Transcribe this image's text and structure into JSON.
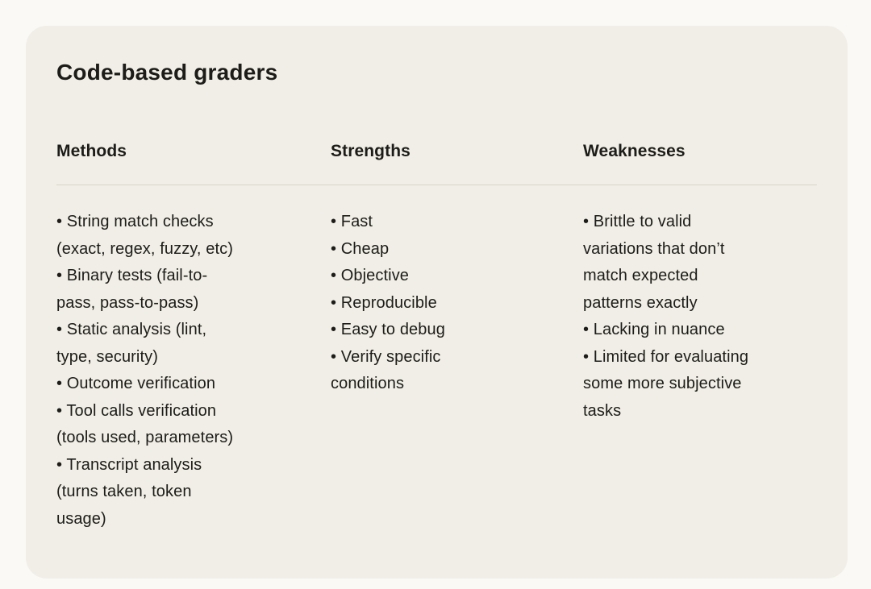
{
  "card": {
    "title": "Code-based graders",
    "columns": [
      {
        "header": "Methods",
        "content": "• String match checks\n(exact, regex, fuzzy, etc)\n• Binary tests (fail-to-\npass, pass-to-pass)\n• Static analysis (lint,\ntype, security)\n• Outcome verification\n• Tool calls verification\n(tools used, parameters)\n• Transcript analysis\n(turns taken, token\nusage)"
      },
      {
        "header": "Strengths",
        "content": "• Fast\n• Cheap\n• Objective\n• Reproducible\n• Easy to debug\n• Verify specific\nconditions"
      },
      {
        "header": "Weaknesses",
        "content": "• Brittle to valid\nvariations that don’t\nmatch expected\npatterns exactly\n• Lacking in nuance\n• Limited for evaluating\nsome more subjective\ntasks"
      }
    ]
  },
  "colors": {
    "page_background": "#FAF9F5",
    "card_background": "#F0EEE6",
    "text": "#1D1C18",
    "divider": "#DAD6CC"
  }
}
